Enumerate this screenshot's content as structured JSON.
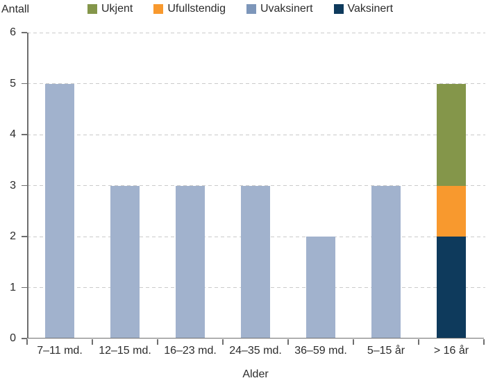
{
  "legend": {
    "items": [
      {
        "label": "Ukjent",
        "chip_color": "#84964a"
      },
      {
        "label": "Ufullstendig",
        "chip_color": "#f8992e"
      },
      {
        "label": "Uvaksinert",
        "chip_color": "#7d96ba"
      },
      {
        "label": "Vaksinert",
        "chip_color": "#0e3a5c"
      }
    ]
  },
  "chart_data": {
    "type": "bar",
    "stacked": true,
    "title": "",
    "xlabel": "Alder",
    "ylabel": "Antall",
    "ylim": [
      0,
      6
    ],
    "yticks": [
      0,
      1,
      2,
      3,
      4,
      5,
      6
    ],
    "grid": "horizontal dashed gridlines at each integer",
    "legend_position": "top",
    "categories": [
      "7–11 md.",
      "12–15 md.",
      "16–23 md.",
      "24–35 md.",
      "36–59 md.",
      "5–15 år",
      "> 16 år"
    ],
    "stack_order_bottom_to_top": [
      "Vaksinert",
      "Uvaksinert",
      "Ufullstendig",
      "Ukjent"
    ],
    "series": [
      {
        "name": "Ukjent",
        "color": "#84964a",
        "values": [
          0,
          0,
          0,
          0,
          0,
          0,
          2
        ]
      },
      {
        "name": "Ufullstendig",
        "color": "#f8992e",
        "values": [
          0,
          0,
          0,
          0,
          0,
          0,
          1
        ]
      },
      {
        "name": "Uvaksinert",
        "color": "#a1b2cd",
        "values": [
          5,
          3,
          3,
          3,
          2,
          3,
          0
        ]
      },
      {
        "name": "Vaksinert",
        "color": "#0e3a5c",
        "values": [
          0,
          0,
          0,
          0,
          0,
          0,
          2
        ]
      }
    ]
  }
}
